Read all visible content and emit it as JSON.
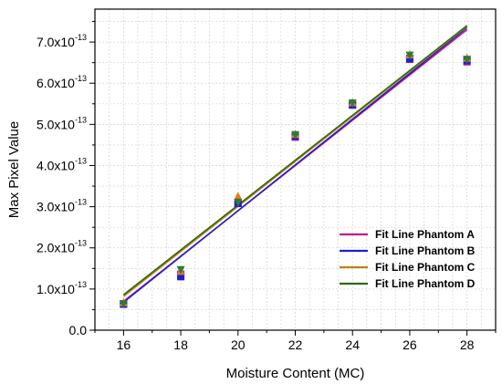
{
  "chart_data": {
    "type": "scatter",
    "xlabel": "Moisture Content (MC)",
    "ylabel": "Max Pixel Value",
    "x_ticks": [
      "16",
      "18",
      "20",
      "22",
      "24",
      "26",
      "28"
    ],
    "y_ticks": [
      {
        "mantissa": "0.0",
        "exp": ""
      },
      {
        "mantissa": "1.0x10",
        "exp": "-13"
      },
      {
        "mantissa": "2.0x10",
        "exp": "-13"
      },
      {
        "mantissa": "3.0x10",
        "exp": "-13"
      },
      {
        "mantissa": "4.0x10",
        "exp": "-13"
      },
      {
        "mantissa": "5.0x10",
        "exp": "-13"
      },
      {
        "mantissa": "6.0x10",
        "exp": "-13"
      },
      {
        "mantissa": "7.0x10",
        "exp": "-13"
      }
    ],
    "xlim": [
      15,
      29
    ],
    "ylim": [
      0,
      7.8e-13
    ],
    "grid": true,
    "legend_position": "bottom-right",
    "x": [
      16,
      18,
      20,
      22,
      24,
      26,
      28
    ],
    "series": [
      {
        "name": "Fit Line Phantom A",
        "color": "#c2188f",
        "marker": "square",
        "values": [
          6.4e-14,
          1.36e-13,
          3.09e-13,
          4.69e-13,
          5.47e-13,
          6.58e-13,
          6.52e-13
        ],
        "fit": [
          7e-14,
          7.3e-13
        ]
      },
      {
        "name": "Fit Line Phantom B",
        "color": "#1f1fd0",
        "marker": "square",
        "values": [
          6.3e-14,
          1.3e-13,
          3.08e-13,
          4.71e-13,
          5.47e-13,
          6.6e-13,
          6.55e-13
        ],
        "fit": [
          6.8e-14,
          7.35e-13
        ]
      },
      {
        "name": "Fit Line Phantom C",
        "color": "#e87b1e",
        "marker": "triangle-up",
        "values": [
          6.6e-14,
          1.42e-13,
          3.24e-13,
          4.75e-13,
          5.52e-13,
          6.68e-13,
          6.6e-13
        ],
        "fit": [
          8.2e-14,
          7.38e-13
        ]
      },
      {
        "name": "Fit Line Phantom D",
        "color": "#2e7d32",
        "marker": "triangle-down",
        "values": [
          6.5e-14,
          1.48e-13,
          3.12e-13,
          4.76e-13,
          5.53e-13,
          6.69e-13,
          6.59e-13
        ],
        "fit": [
          8.6e-14,
          7.4e-13
        ]
      }
    ]
  },
  "legend_line_colors": [
    "#c2188f",
    "#1f1fd0",
    "#b8860b",
    "#2e6b12"
  ]
}
